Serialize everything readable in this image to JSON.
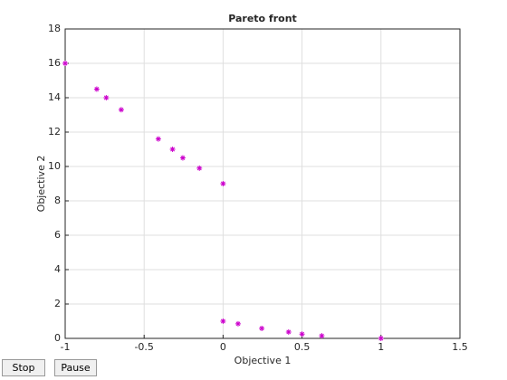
{
  "chart_data": {
    "type": "scatter",
    "title": "Pareto front",
    "xlabel": "Objective 1",
    "ylabel": "Objective 2",
    "series": [
      {
        "color": "#cc00cc",
        "x": [
          -1,
          -0.8,
          -0.74,
          -0.645,
          -0.41,
          -0.32,
          -0.255,
          -0.15,
          0,
          0,
          0.095,
          0.245,
          0.415,
          0.5,
          0.625,
          1
        ],
        "values": [
          16,
          14.5,
          14,
          13.3,
          11.6,
          11,
          10.5,
          9.9,
          9,
          1,
          0.85,
          0.58,
          0.37,
          0.25,
          0.15,
          0
        ]
      }
    ],
    "xlim": [
      -1,
      1.5
    ],
    "xticks": [
      -1,
      -0.5,
      0,
      0.5,
      1,
      1.5
    ],
    "ylim": [
      0,
      18
    ],
    "yticks": [
      0,
      2,
      4,
      6,
      8,
      10,
      12,
      14,
      16,
      18
    ],
    "grid": true
  },
  "buttons": [
    "Stop",
    "Pause"
  ]
}
